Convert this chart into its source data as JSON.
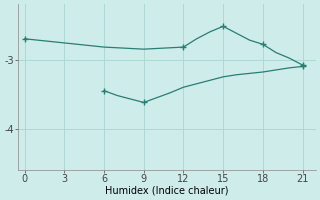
{
  "xlabel": "Humidex (Indice chaleur)",
  "background_color": "#ceecea",
  "line_color": "#2a7d72",
  "grid_color": "#aed8d4",
  "series1_x": [
    0,
    1,
    2,
    3,
    4,
    5,
    6,
    7,
    8,
    9,
    10,
    11,
    12,
    13,
    14,
    15,
    16,
    17,
    18,
    19,
    20,
    21
  ],
  "series1_y": [
    -2.7,
    -2.72,
    -2.74,
    -2.76,
    -2.78,
    -2.8,
    -2.82,
    -2.83,
    -2.84,
    -2.85,
    -2.84,
    -2.83,
    -2.82,
    -2.7,
    -2.6,
    -2.52,
    -2.62,
    -2.72,
    -2.78,
    -2.9,
    -2.98,
    -3.08
  ],
  "series2_x": [
    6,
    7,
    8,
    9,
    10,
    11,
    12,
    13,
    14,
    15,
    16,
    17,
    18,
    19,
    20,
    21
  ],
  "series2_y": [
    -3.45,
    -3.52,
    -3.57,
    -3.62,
    -3.55,
    -3.48,
    -3.4,
    -3.35,
    -3.3,
    -3.25,
    -3.22,
    -3.2,
    -3.18,
    -3.15,
    -3.12,
    -3.1
  ],
  "marker_series1_x": [
    0,
    12,
    15,
    18,
    21
  ],
  "marker_series1_y": [
    -2.7,
    -2.82,
    -2.52,
    -2.78,
    -3.08
  ],
  "marker_series2_x": [
    6,
    9,
    21
  ],
  "marker_series2_y": [
    -3.45,
    -3.62,
    -3.1
  ],
  "xlim": [
    -0.5,
    22
  ],
  "ylim": [
    -4.6,
    -2.2
  ],
  "xticks": [
    0,
    3,
    6,
    9,
    12,
    15,
    18,
    21
  ],
  "yticks": [
    -4,
    -3
  ],
  "figsize": [
    3.2,
    2.0
  ],
  "dpi": 100
}
